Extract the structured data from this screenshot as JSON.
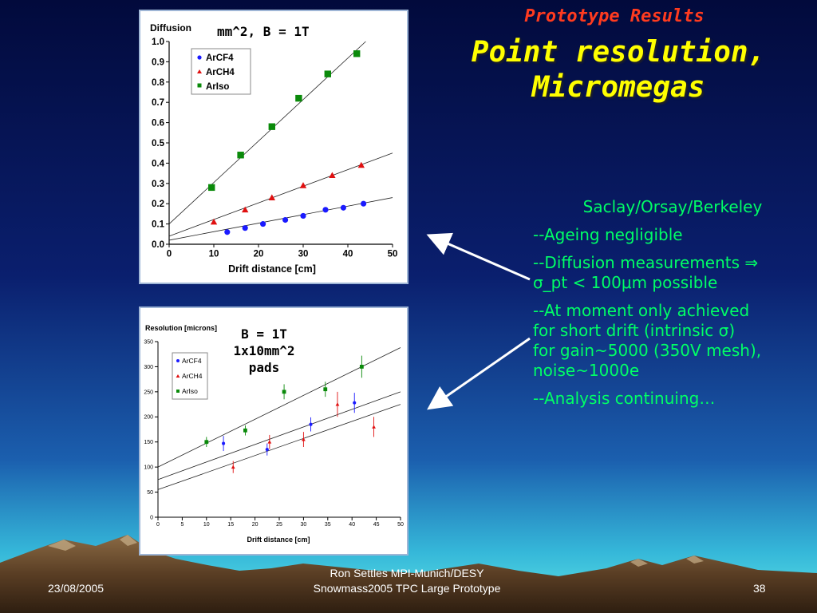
{
  "slide": {
    "kicker": "Prototype Results",
    "title_line1": "Point resolution,",
    "title_line2": "Micromegas"
  },
  "bullets": {
    "source": "Saclay/Orsay/Berkeley",
    "b1": "--Ageing negligible",
    "b2_line1": "--Diffusion measurements ⇒",
    "b2_line2": "σ_pt < 100μm possible",
    "b3_line1": "--At moment only achieved",
    "b3_line2": "for short drift (intrinsic σ)",
    "b3_line3": "for gain~5000 (350V mesh),",
    "b3_line4": "noise~1000e",
    "b4": "--Analysis continuing…"
  },
  "footer": {
    "date": "23/08/2005",
    "center_line1": "Ron Settles  MPI-Munich/DESY",
    "center_line2": "Snowmass2005 TPC Large Prototype",
    "page": "38"
  },
  "colors": {
    "ArCF4": "#1a1aff",
    "ArCH4": "#e01010",
    "ArIso": "#0a8a0a",
    "bullet_text": "#00ff66",
    "title_yellow": "#ffff00",
    "kicker_red": "#ff3b1f"
  },
  "chart_data": [
    {
      "type": "scatter",
      "title": "",
      "ylabel": "Diffusion",
      "annotation": "mm^2, B = 1T",
      "xlabel": "Drift distance [cm]",
      "xlim": [
        0,
        50
      ],
      "ylim": [
        0,
        1.0
      ],
      "xticks": [
        0,
        10,
        20,
        30,
        40,
        50
      ],
      "xtick_labels": [
        "0",
        "10",
        "20",
        "30",
        "40",
        "50"
      ],
      "yticks": [
        0.0,
        0.1,
        0.2,
        0.3,
        0.4,
        0.5,
        0.6,
        0.7,
        0.8,
        0.9,
        1.0
      ],
      "ytick_labels": [
        "0.0",
        "0.1",
        "0.2",
        "0.3",
        "0.4",
        "0.5",
        "0.6",
        "0.7",
        "0.8",
        "0.9",
        "1.0"
      ],
      "legend": "top-left",
      "series": [
        {
          "name": "ArCF4",
          "marker": "circle",
          "x": [
            13,
            17,
            21,
            26,
            30,
            35,
            39,
            43.5
          ],
          "y": [
            0.06,
            0.08,
            0.1,
            0.12,
            0.14,
            0.17,
            0.18,
            0.2
          ],
          "fit": [
            [
              0,
              0.02
            ],
            [
              50,
              0.23
            ]
          ]
        },
        {
          "name": "ArCH4",
          "marker": "triangle",
          "x": [
            10,
            17,
            23,
            30,
            36.5,
            43
          ],
          "y": [
            0.11,
            0.17,
            0.23,
            0.29,
            0.34,
            0.39
          ],
          "fit": [
            [
              0,
              0.04
            ],
            [
              50,
              0.45
            ]
          ]
        },
        {
          "name": "ArIso",
          "marker": "square",
          "x": [
            9.5,
            16,
            23,
            29,
            35.5,
            42
          ],
          "y": [
            0.28,
            0.44,
            0.58,
            0.72,
            0.84,
            0.94
          ],
          "fit": [
            [
              0,
              0.1
            ],
            [
              44,
              1.0
            ]
          ]
        }
      ]
    },
    {
      "type": "scatter",
      "title": "",
      "ylabel": "Resolution [microns]",
      "annotation_line1": "B = 1T",
      "annotation_line2": "1x10mm^2",
      "annotation_line3": "pads",
      "xlabel": "Drift distance [cm]",
      "xlim": [
        0,
        50
      ],
      "ylim": [
        0,
        350
      ],
      "xticks": [
        0,
        5,
        10,
        15,
        20,
        25,
        30,
        35,
        40,
        45,
        50
      ],
      "xtick_labels": [
        "0",
        "5",
        "10",
        "15",
        "20",
        "25",
        "30",
        "35",
        "40",
        "45",
        "50"
      ],
      "yticks": [
        0,
        50,
        100,
        150,
        200,
        250,
        300,
        350
      ],
      "ytick_labels": [
        "0",
        "50",
        "100",
        "150",
        "200",
        "250",
        "300",
        "350"
      ],
      "legend": "top-left",
      "series": [
        {
          "name": "ArCF4",
          "marker": "circle",
          "x": [
            13.5,
            22.5,
            31.5,
            40.5
          ],
          "y": [
            147,
            135,
            185,
            228
          ],
          "err": [
            15,
            12,
            14,
            20
          ],
          "fit": [
            [
              0,
              75
            ],
            [
              50,
              250
            ]
          ]
        },
        {
          "name": "ArCH4",
          "marker": "triangle",
          "x": [
            15.5,
            23,
            30,
            37,
            44.5
          ],
          "y": [
            100,
            150,
            155,
            225,
            180
          ],
          "err": [
            12,
            14,
            15,
            25,
            20
          ],
          "fit": [
            [
              0,
              55
            ],
            [
              50,
              225
            ]
          ]
        },
        {
          "name": "ArIso",
          "marker": "square",
          "x": [
            10,
            18,
            26,
            34.5,
            42
          ],
          "y": [
            150,
            173,
            250,
            255,
            300
          ],
          "err": [
            10,
            10,
            15,
            15,
            22
          ],
          "fit": [
            [
              0,
              100
            ],
            [
              50,
              338
            ]
          ]
        }
      ]
    }
  ]
}
